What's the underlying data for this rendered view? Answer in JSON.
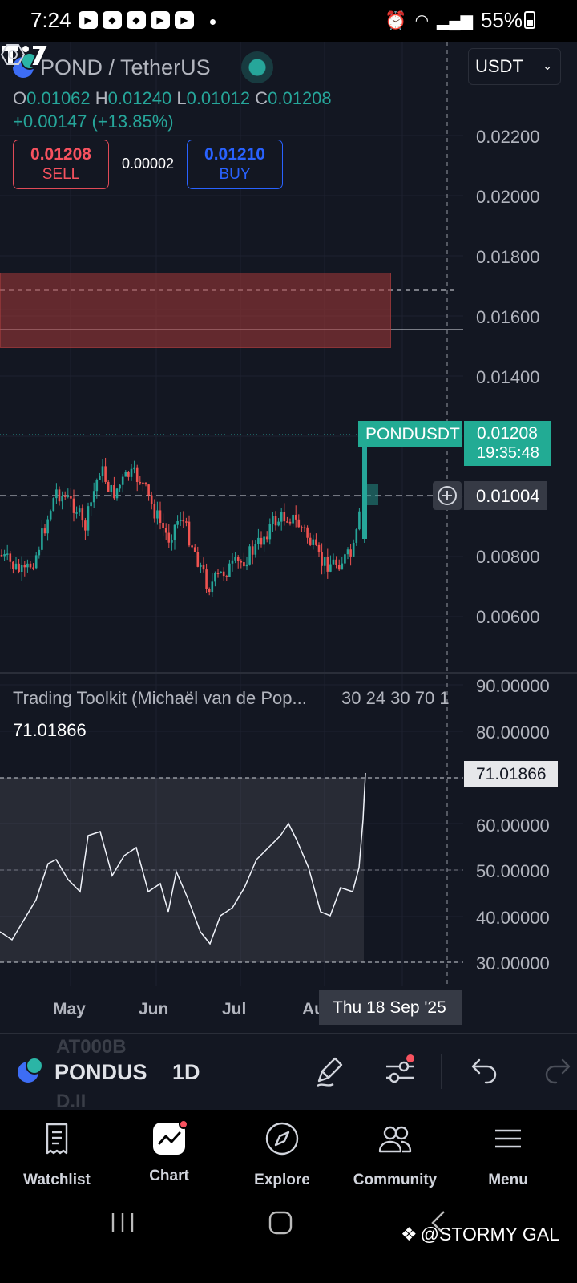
{
  "status_bar": {
    "time": "7:24",
    "battery": "55%",
    "notification_apps": [
      "play-icon",
      "shield-icon",
      "shield-icon",
      "play-icon",
      "play-icon"
    ]
  },
  "chart": {
    "symbol": "POND / TetherUS",
    "currency": "USDT",
    "ohlc": {
      "o_label": "O",
      "o": "0.01062",
      "h_label": "H",
      "h": "0.01240",
      "l_label": "L",
      "l": "0.01012",
      "c_label": "C",
      "c": "0.01208"
    },
    "change": "+0.00147 (+13.85%)",
    "sell": {
      "price": "0.01208",
      "label": "SELL"
    },
    "buy": {
      "price": "0.01210",
      "label": "BUY"
    },
    "spread": "0.00002",
    "price_axis": [
      "0.02200",
      "0.02000",
      "0.01800",
      "0.01600",
      "0.01400",
      "0.00800",
      "0.00600"
    ],
    "last_price_tag": {
      "symbol": "PONDUSDT",
      "price": "0.01208",
      "countdown": "19:35:48"
    },
    "crosshair_price": "0.01004",
    "indicator": {
      "title": "Trading Toolkit (Michaël van de Pop...",
      "params": "30 24 30 70 1",
      "value": "71.01866",
      "axis": [
        "90.00000",
        "80.00000",
        "60.00000",
        "50.00000",
        "40.00000",
        "30.00000"
      ],
      "tag": "71.01866"
    },
    "time_axis": [
      "May",
      "Jun",
      "Jul",
      "Au"
    ],
    "crosshair_date": "Thu 18 Sep '25",
    "colors": {
      "up": "#26a69a",
      "down": "#ef5350",
      "background": "#131722",
      "zone": "#a53838"
    }
  },
  "toolbar": {
    "symbol": "PONDUS",
    "interval": "1D",
    "ghost_top": "AT000B",
    "ghost_bottom": "D.II"
  },
  "bottom_nav": [
    {
      "label": "Watchlist",
      "icon": "watchlist-icon"
    },
    {
      "label": "Chart",
      "icon": "chart-icon"
    },
    {
      "label": "Explore",
      "icon": "compass-icon"
    },
    {
      "label": "Community",
      "icon": "community-icon"
    },
    {
      "label": "Menu",
      "icon": "menu-icon"
    }
  ],
  "watermark": "@STORMY GAL"
}
